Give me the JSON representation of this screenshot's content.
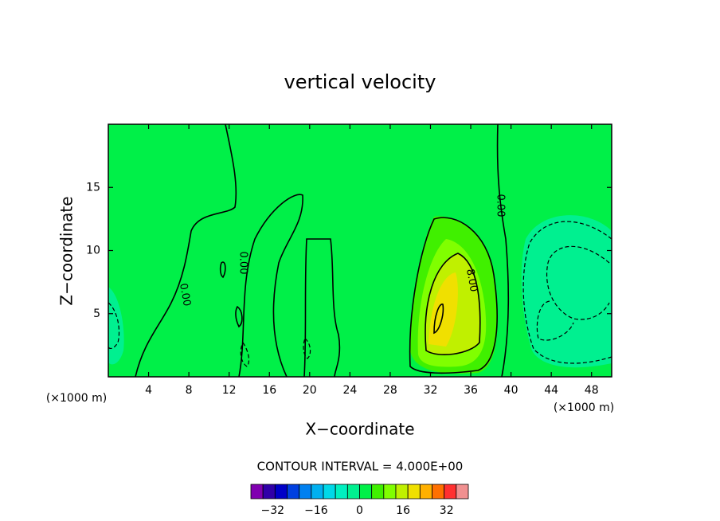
{
  "chart_data": {
    "type": "contour",
    "title": "vertical velocity",
    "xlabel": "X−coordinate",
    "ylabel": "Z−coordinate",
    "x_unit": "(×1000 m)",
    "xlim": [
      0,
      50
    ],
    "xticks": [
      4,
      8,
      12,
      16,
      20,
      24,
      28,
      32,
      36,
      40,
      44,
      48
    ],
    "ylim": [
      0,
      20
    ],
    "yticks": [
      5,
      10,
      15
    ],
    "contour_interval": {
      "value": 4,
      "label": "CONTOUR INTERVAL = 4.000E+00"
    },
    "contour_labels": [
      {
        "value": 0,
        "label": "0.00"
      },
      {
        "value": 0,
        "label": "0.00"
      },
      {
        "value": 0,
        "label": "0.00"
      },
      {
        "value": 8,
        "label": "8.00"
      }
    ],
    "colorbar": {
      "colors": [
        "#8000b0",
        "#3000a8",
        "#0000c8",
        "#0040e0",
        "#0080f0",
        "#00b0f0",
        "#00d8e8",
        "#00f0c0",
        "#00f090",
        "#00f048",
        "#40f000",
        "#80ff00",
        "#c0f000",
        "#f0e000",
        "#ffb000",
        "#ff7000",
        "#ff3030",
        "#f09090"
      ],
      "lim": [
        -40,
        40
      ],
      "ticks": [
        {
          "value": -32,
          "label": "−32"
        },
        {
          "value": -16,
          "label": "−16"
        },
        0,
        16,
        32
      ]
    }
  }
}
